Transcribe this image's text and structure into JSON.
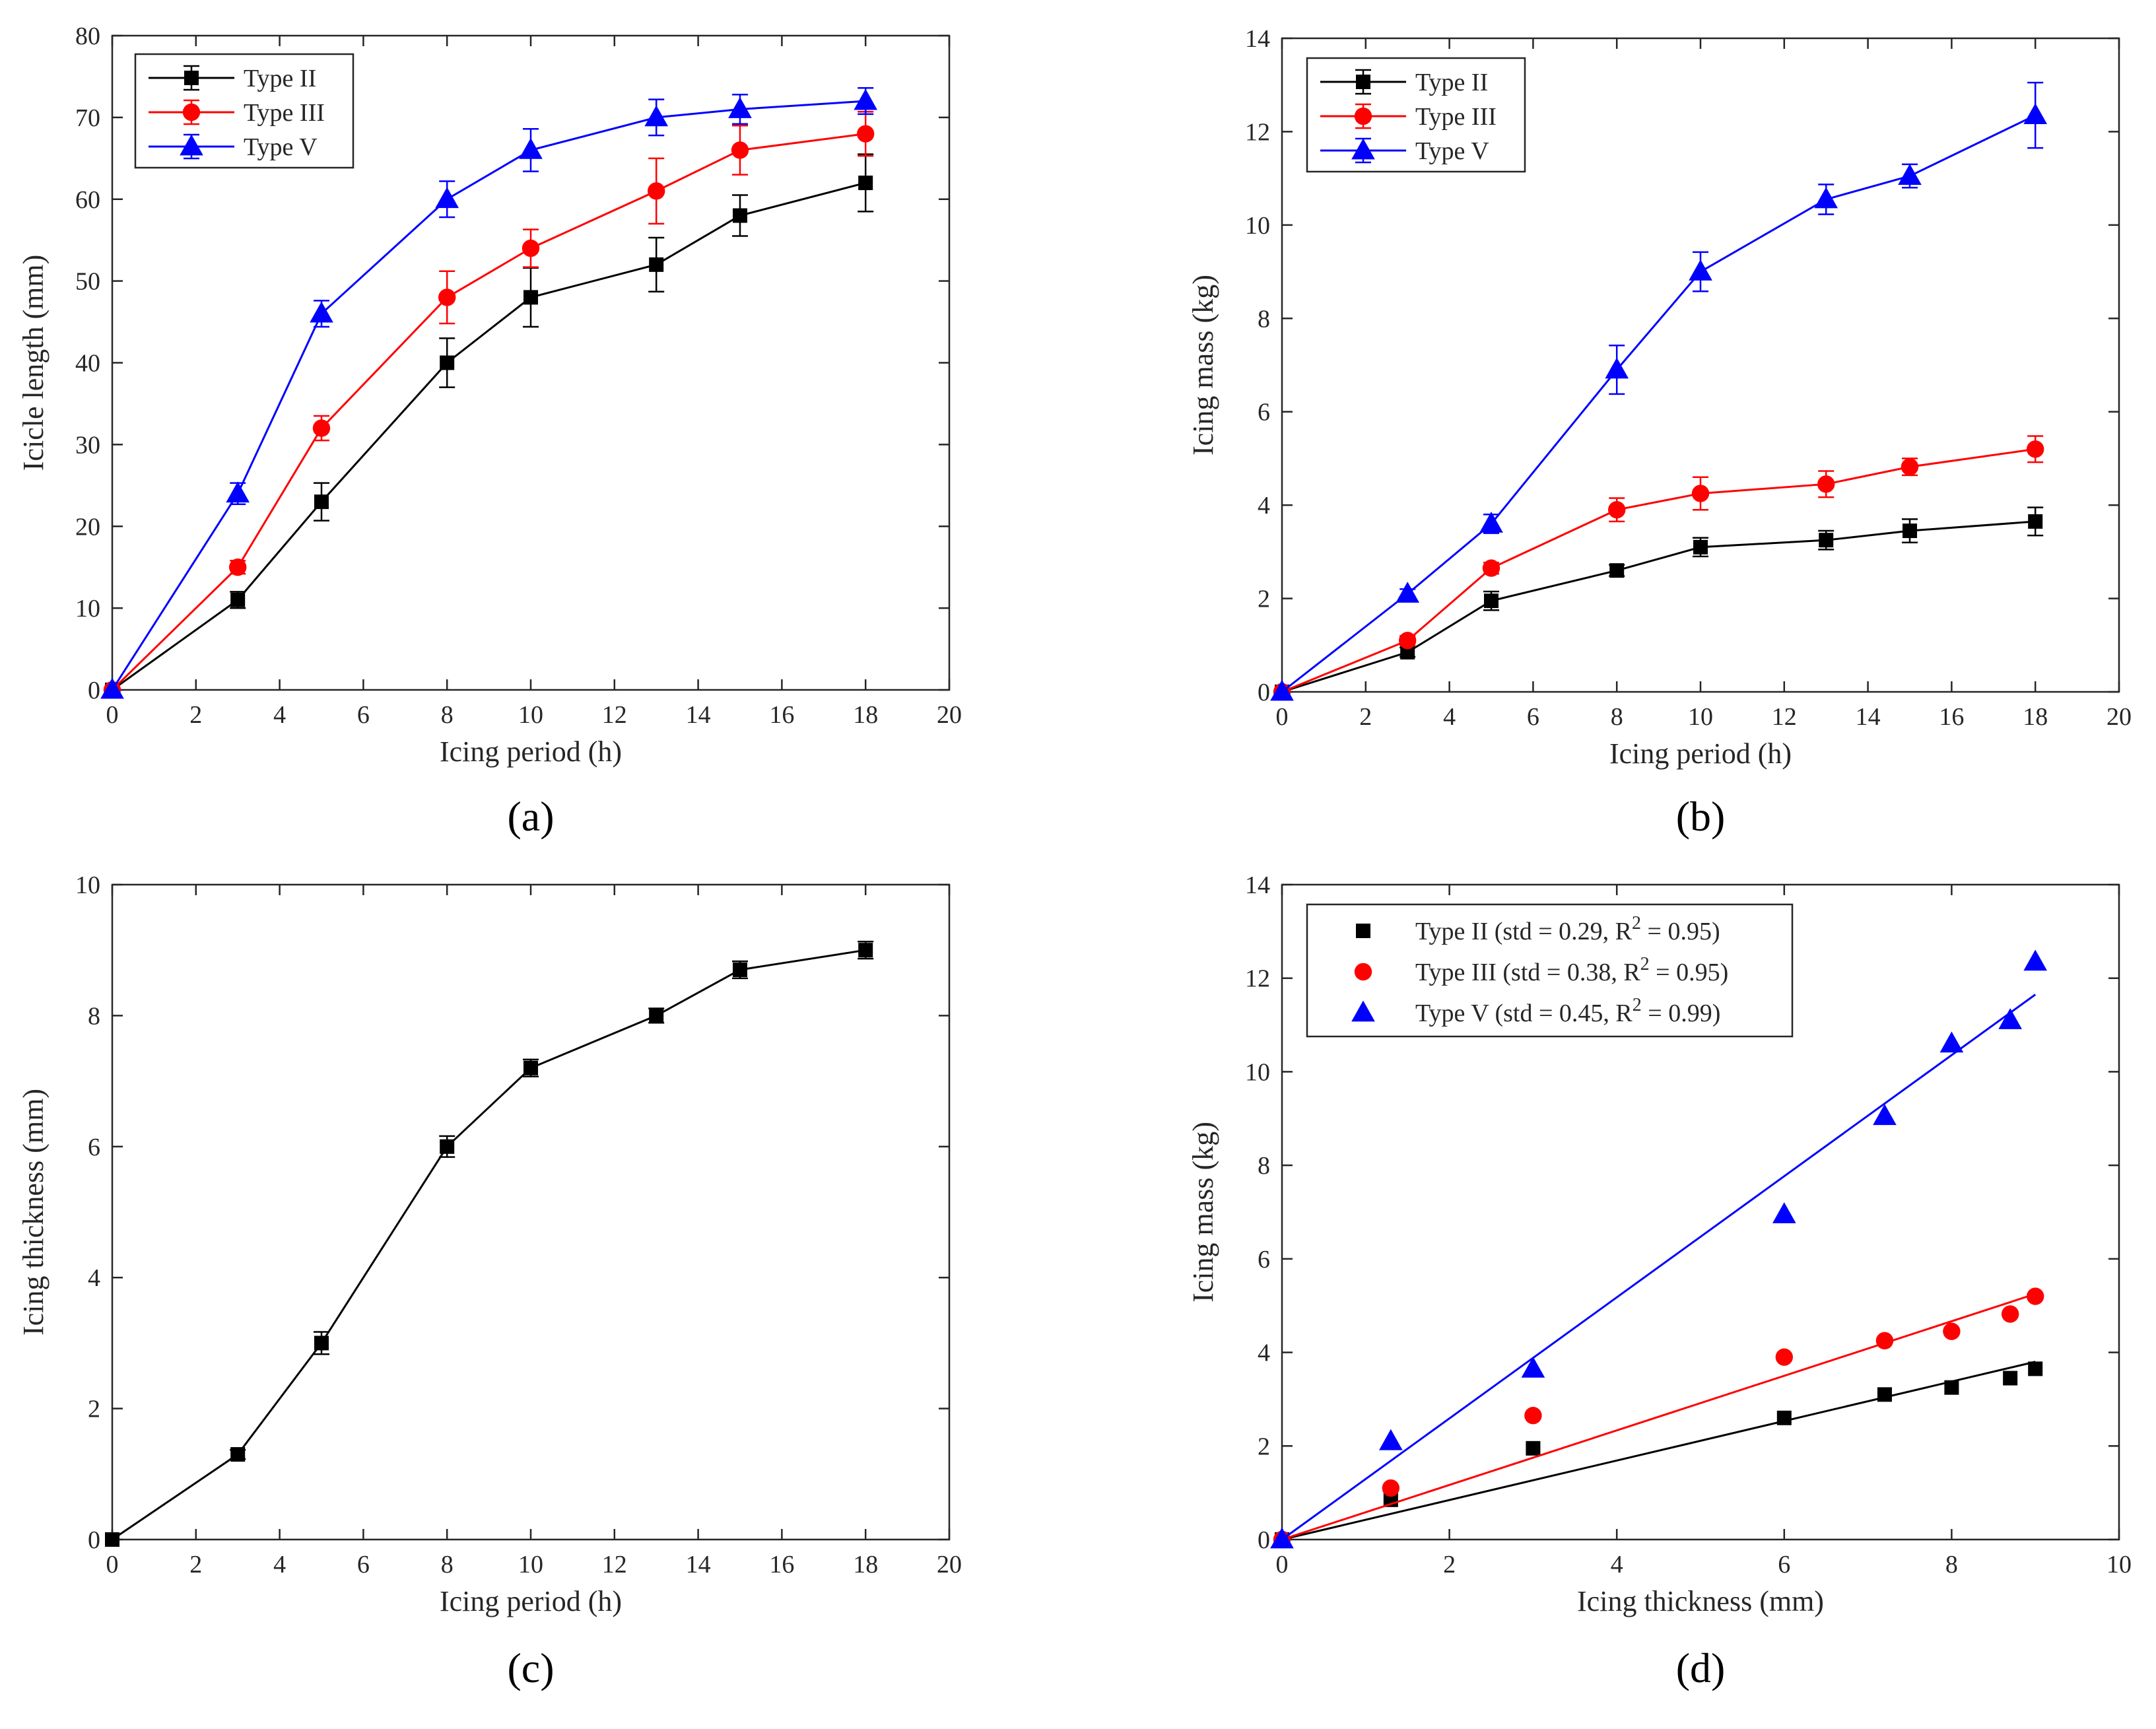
{
  "chart_data": [
    {
      "panel": "(a)",
      "type": "line",
      "xlabel": "Icing period (h)",
      "ylabel": "Icicle length (mm)",
      "xlim": [
        0,
        20
      ],
      "ylim": [
        0,
        80
      ],
      "xticks": [
        0,
        2,
        4,
        6,
        8,
        10,
        12,
        14,
        16,
        18,
        20
      ],
      "yticks": [
        0,
        10,
        20,
        30,
        40,
        50,
        60,
        70,
        80
      ],
      "legend": "top-left",
      "grid": false,
      "series": [
        {
          "name": "Type II",
          "color": "#000000",
          "marker": "square",
          "x": [
            0,
            3,
            5,
            8,
            10,
            13,
            15,
            18
          ],
          "y": [
            0,
            11,
            23,
            40,
            48,
            52,
            58,
            62
          ],
          "err": [
            0,
            1,
            2.3,
            3,
            3.6,
            3.3,
            2.5,
            3.5
          ]
        },
        {
          "name": "Type III",
          "color": "#ff0000",
          "marker": "circle",
          "x": [
            0,
            3,
            5,
            8,
            10,
            13,
            15,
            18
          ],
          "y": [
            0,
            15,
            32,
            48,
            54,
            61,
            66,
            68
          ],
          "err": [
            0,
            0.8,
            1.5,
            3.2,
            2.3,
            4,
            3,
            2.7
          ]
        },
        {
          "name": "Type V",
          "color": "#0000ff",
          "marker": "triangle",
          "x": [
            0,
            3,
            5,
            8,
            10,
            13,
            15,
            18
          ],
          "y": [
            0,
            24,
            46,
            60,
            66,
            70,
            71,
            72
          ],
          "err": [
            0,
            1.3,
            1.6,
            2.2,
            2.6,
            2.2,
            1.8,
            1.6
          ]
        }
      ]
    },
    {
      "panel": "(b)",
      "type": "line",
      "xlabel": "Icing period (h)",
      "ylabel": "Icing mass (kg)",
      "xlim": [
        0,
        20
      ],
      "ylim": [
        0,
        14
      ],
      "xticks": [
        0,
        2,
        4,
        6,
        8,
        10,
        12,
        14,
        16,
        18,
        20
      ],
      "yticks": [
        0,
        2,
        4,
        6,
        8,
        10,
        12,
        14
      ],
      "legend": "top-left",
      "grid": false,
      "series": [
        {
          "name": "Type II",
          "color": "#000000",
          "marker": "square",
          "x": [
            0,
            3,
            5,
            8,
            10,
            13,
            15,
            18
          ],
          "y": [
            0,
            0.85,
            1.95,
            2.6,
            3.1,
            3.25,
            3.45,
            3.65
          ],
          "err": [
            0,
            0.1,
            0.2,
            0.12,
            0.2,
            0.2,
            0.25,
            0.3
          ]
        },
        {
          "name": "Type III",
          "color": "#ff0000",
          "marker": "circle",
          "x": [
            0,
            3,
            5,
            8,
            10,
            13,
            15,
            18
          ],
          "y": [
            0,
            1.1,
            2.65,
            3.9,
            4.25,
            4.45,
            4.82,
            5.2
          ],
          "err": [
            0,
            0.1,
            0.12,
            0.25,
            0.35,
            0.28,
            0.18,
            0.28
          ]
        },
        {
          "name": "Type V",
          "color": "#0000ff",
          "marker": "triangle",
          "x": [
            0,
            3,
            5,
            8,
            10,
            13,
            15,
            18
          ],
          "y": [
            0,
            2.1,
            3.6,
            6.9,
            9.0,
            10.55,
            11.05,
            12.35
          ],
          "err": [
            0,
            0.1,
            0.2,
            0.52,
            0.42,
            0.32,
            0.25,
            0.7
          ]
        }
      ]
    },
    {
      "panel": "(c)",
      "type": "line",
      "xlabel": "Icing period (h)",
      "ylabel": "Icing thickness (mm)",
      "xlim": [
        0,
        20
      ],
      "ylim": [
        0,
        10
      ],
      "xticks": [
        0,
        2,
        4,
        6,
        8,
        10,
        12,
        14,
        16,
        18,
        20
      ],
      "yticks": [
        0,
        2,
        4,
        6,
        8,
        10
      ],
      "grid": false,
      "series": [
        {
          "color": "#000000",
          "marker": "square",
          "x": [
            0,
            3,
            5,
            8,
            10,
            13,
            15,
            18
          ],
          "y": [
            0,
            1.3,
            3.0,
            6.0,
            7.2,
            8.0,
            8.7,
            9.0
          ],
          "err": [
            0,
            0.07,
            0.17,
            0.16,
            0.13,
            0.11,
            0.13,
            0.13
          ]
        }
      ]
    },
    {
      "panel": "(d)",
      "type": "scatter",
      "xlabel": "Icing thickness (mm)",
      "ylabel": "Icing mass (kg)",
      "xlim": [
        0,
        10
      ],
      "ylim": [
        0,
        14
      ],
      "xticks": [
        0,
        2,
        4,
        6,
        8,
        10
      ],
      "yticks": [
        0,
        2,
        4,
        6,
        8,
        10,
        12,
        14
      ],
      "legend": "top-left",
      "grid": false,
      "series": [
        {
          "name": "Type II (std = 0.29, R",
          "sup": "2",
          "name_tail": " = 0.95)",
          "color": "#000000",
          "marker": "square",
          "x": [
            0,
            1.3,
            3.0,
            6.0,
            7.2,
            8.0,
            8.7,
            9.0
          ],
          "y": [
            0,
            0.85,
            1.95,
            2.6,
            3.1,
            3.25,
            3.45,
            3.65
          ],
          "fit_x": [
            0,
            9.0
          ],
          "fit_y": [
            0,
            3.8
          ]
        },
        {
          "name": "Type III (std = 0.38, R",
          "sup": "2",
          "name_tail": " = 0.95)",
          "color": "#ff0000",
          "marker": "circle",
          "x": [
            0,
            1.3,
            3.0,
            6.0,
            7.2,
            8.0,
            8.7,
            9.0
          ],
          "y": [
            0,
            1.1,
            2.65,
            3.9,
            4.25,
            4.45,
            4.82,
            5.2
          ],
          "fit_x": [
            0,
            9.0
          ],
          "fit_y": [
            0,
            5.25
          ]
        },
        {
          "name": "Type V (std = 0.45, R",
          "sup": "2",
          "name_tail": " = 0.99)",
          "color": "#0000ff",
          "marker": "triangle",
          "x": [
            0,
            1.3,
            3.0,
            6.0,
            7.2,
            8.0,
            8.7,
            9.0
          ],
          "y": [
            0,
            2.1,
            3.65,
            6.95,
            9.05,
            10.6,
            11.1,
            12.35
          ],
          "fit_x": [
            0,
            9.0
          ],
          "fit_y": [
            0,
            11.65
          ]
        }
      ]
    }
  ]
}
